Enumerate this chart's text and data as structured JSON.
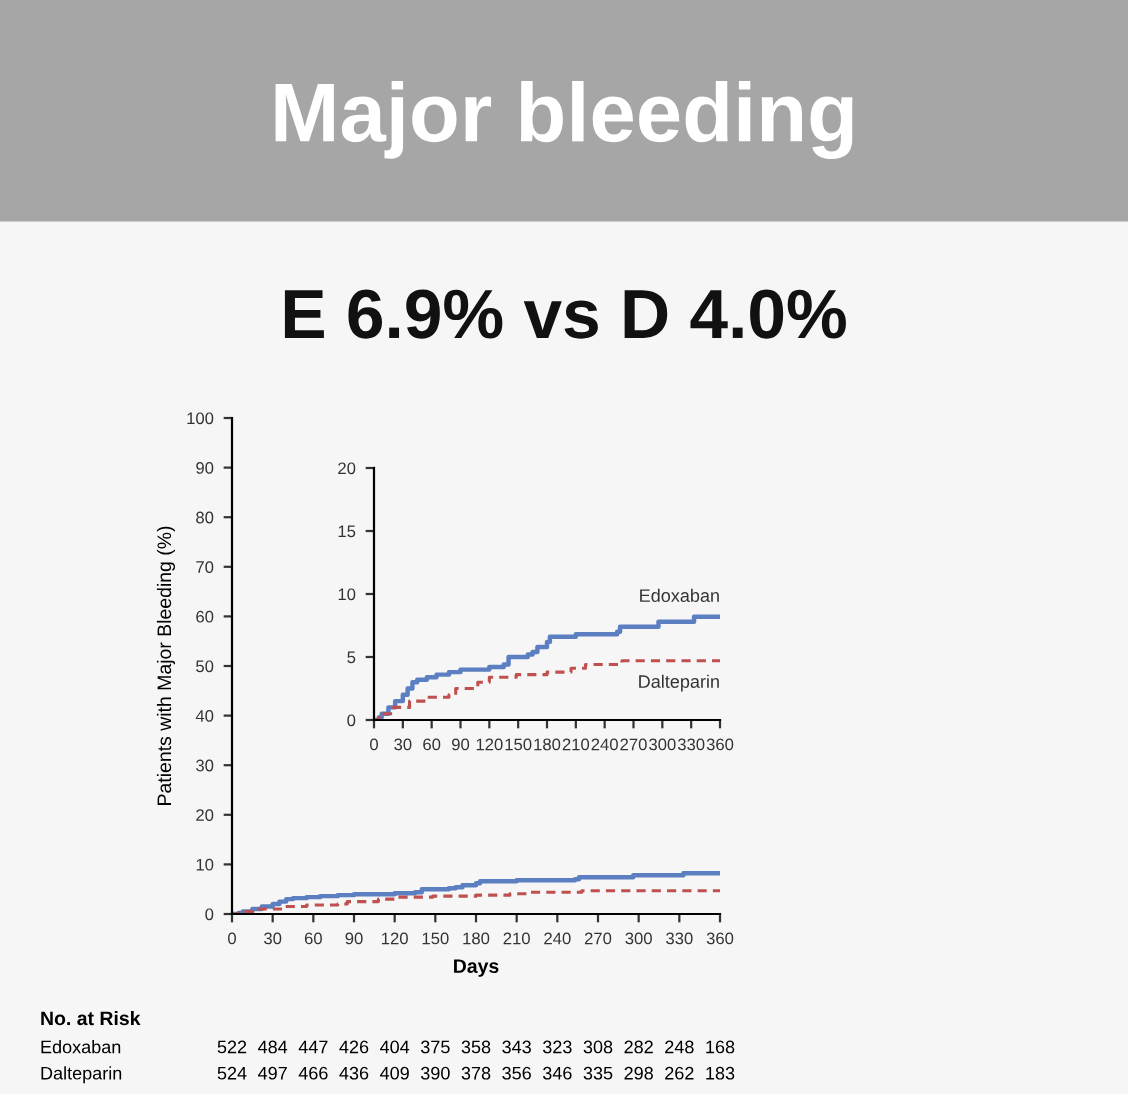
{
  "chart_data": [
    {
      "type": "step",
      "title": "Major bleeding",
      "subtitle": "E 6.9% vs D 4.0%",
      "xlabel": "Days",
      "ylabel": "Patients with Major Bleeding (%)",
      "xlim": [
        0,
        360
      ],
      "xticks": [
        0,
        30,
        60,
        90,
        120,
        150,
        180,
        210,
        240,
        270,
        300,
        330,
        360
      ],
      "ylim": [
        0,
        100
      ],
      "yticks": [
        0,
        10,
        20,
        30,
        40,
        50,
        60,
        70,
        80,
        90,
        100
      ],
      "grid": false,
      "legend": false,
      "series": [
        {
          "color": "#5b7fc0",
          "line_style": "solid",
          "x": [
            0,
            5,
            8,
            15,
            22,
            30,
            35,
            40,
            45,
            55,
            65,
            78,
            90,
            120,
            135,
            140,
            160,
            165,
            170,
            180,
            183,
            210,
            253,
            256,
            296,
            333,
            360
          ],
          "values": [
            0,
            0.2,
            0.5,
            1.0,
            1.5,
            2.0,
            2.5,
            3.0,
            3.2,
            3.4,
            3.6,
            3.8,
            4.0,
            4.2,
            4.4,
            5.0,
            5.2,
            5.4,
            5.8,
            6.2,
            6.6,
            6.8,
            7.0,
            7.4,
            7.8,
            8.2,
            8.2
          ]
        },
        {
          "color": "#c0504d",
          "line_style": "dashed",
          "x": [
            0,
            5,
            10,
            20,
            37,
            55,
            78,
            85,
            108,
            120,
            148,
            180,
            205,
            220,
            258,
            360
          ],
          "values": [
            0,
            0.2,
            0.5,
            1.0,
            1.5,
            1.8,
            2.0,
            2.5,
            3.0,
            3.4,
            3.6,
            3.8,
            4.1,
            4.4,
            4.7,
            4.7
          ]
        }
      ]
    },
    {
      "type": "step",
      "xlim": [
        0,
        360
      ],
      "xticks": [
        0,
        30,
        60,
        90,
        120,
        150,
        180,
        210,
        240,
        270,
        300,
        330,
        360
      ],
      "ylim": [
        0,
        20
      ],
      "yticks": [
        0,
        5,
        10,
        15,
        20
      ],
      "grid": false,
      "series": [
        {
          "name": "Edoxaban",
          "color": "#5b7fc0",
          "line_style": "solid",
          "x": [
            0,
            5,
            8,
            15,
            22,
            30,
            35,
            40,
            45,
            55,
            65,
            78,
            90,
            120,
            135,
            140,
            160,
            165,
            170,
            180,
            183,
            210,
            253,
            256,
            296,
            333,
            360
          ],
          "values": [
            0,
            0.2,
            0.5,
            1.0,
            1.5,
            2.0,
            2.5,
            3.0,
            3.2,
            3.4,
            3.6,
            3.8,
            4.0,
            4.2,
            4.4,
            5.0,
            5.2,
            5.4,
            5.8,
            6.2,
            6.6,
            6.8,
            7.0,
            7.4,
            7.8,
            8.2,
            8.2
          ]
        },
        {
          "name": "Dalteparin",
          "color": "#c0504d",
          "line_style": "dashed",
          "x": [
            0,
            5,
            10,
            20,
            37,
            55,
            78,
            85,
            108,
            120,
            148,
            180,
            205,
            220,
            258,
            360
          ],
          "values": [
            0,
            0.2,
            0.5,
            1.0,
            1.5,
            1.8,
            2.0,
            2.5,
            3.0,
            3.4,
            3.6,
            3.8,
            4.1,
            4.4,
            4.7,
            4.7
          ]
        }
      ]
    },
    {
      "type": "other",
      "title": "No. at Risk",
      "annotations": [
        "Edoxaban",
        "522",
        "484",
        "447",
        "426",
        "404",
        "375",
        "358",
        "343",
        "323",
        "308",
        "282",
        "248",
        "168",
        "Dalteparin",
        "524",
        "497",
        "466",
        "436",
        "409",
        "390",
        "378",
        "356",
        "346",
        "335",
        "298",
        "262",
        "183"
      ]
    }
  ]
}
